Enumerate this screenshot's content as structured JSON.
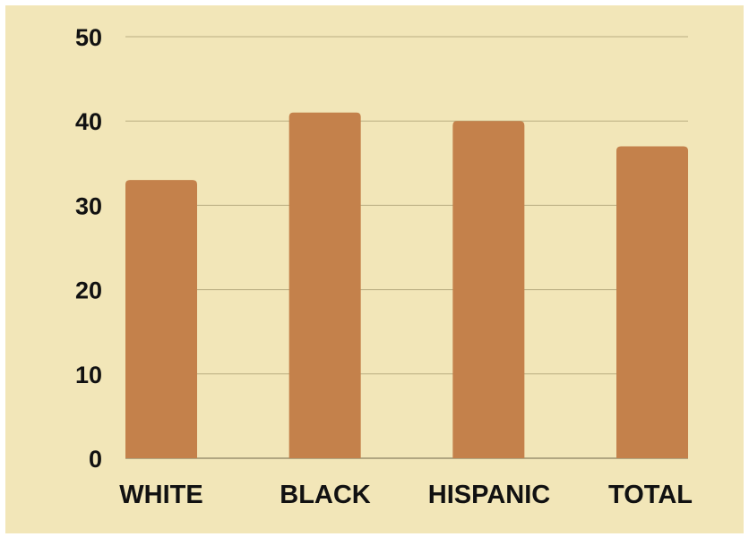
{
  "chart_data": {
    "type": "bar",
    "categories": [
      "WHITE",
      "BLACK",
      "HISPANIC",
      "TOTAL"
    ],
    "values": [
      33,
      41,
      40,
      37
    ],
    "ylim": [
      0,
      50
    ],
    "yticks": [
      0,
      10,
      20,
      30,
      40,
      50
    ],
    "grid": true,
    "legend": "none",
    "title": "",
    "xlabel": "",
    "ylabel": ""
  },
  "colors": {
    "background": "#f2e6b8",
    "bar": "#c4814b",
    "grid": "#b9ad82",
    "text": "#111111"
  }
}
